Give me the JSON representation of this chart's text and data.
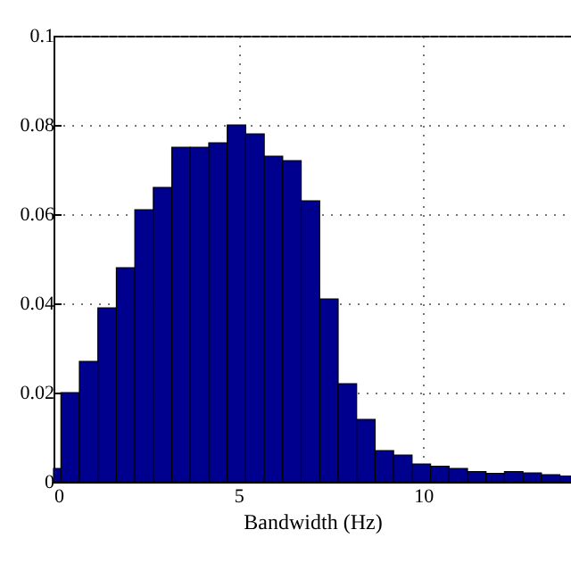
{
  "chart_data": {
    "type": "histogram",
    "xlabel": "Bandwidth (Hz)",
    "color": "#00008f",
    "bins": [
      0,
      0.2,
      0.7,
      1.2,
      1.7,
      2.2,
      2.7,
      3.2,
      3.7,
      4.2,
      4.7,
      5.2,
      5.7,
      6.2,
      6.7,
      7.2,
      7.7,
      8.2,
      8.7,
      9.2,
      9.7,
      10.2,
      10.7,
      11.2,
      11.7,
      12.2,
      12.7,
      13.2,
      13.7,
      14
    ],
    "values": [
      0.003,
      0.02,
      0.027,
      0.039,
      0.048,
      0.061,
      0.066,
      0.075,
      0.075,
      0.076,
      0.08,
      0.078,
      0.073,
      0.072,
      0.063,
      0.041,
      0.022,
      0.014,
      0.007,
      0.006,
      0.004,
      0.0035,
      0.003,
      0.0023,
      0.0019,
      0.0023,
      0.002,
      0.0016,
      0.0013
    ],
    "xlim": [
      0,
      14
    ],
    "ylim": [
      0,
      0.1
    ],
    "xticks": [
      0,
      5,
      10
    ],
    "yticks": [
      0,
      0.02,
      0.04,
      0.06,
      0.08,
      0.1
    ],
    "grid": true
  }
}
